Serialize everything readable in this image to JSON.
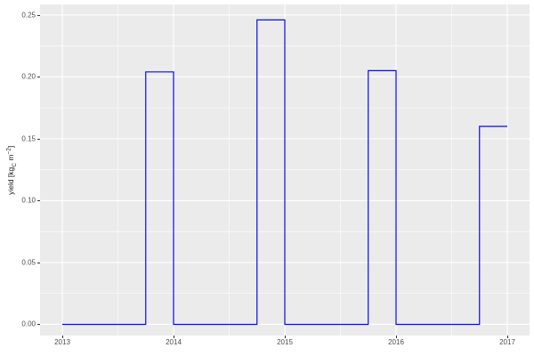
{
  "figure": {
    "background_color": "#FFFFFF",
    "panel_background_color": "#EBEBEB",
    "grid_color": "#FFFFFF",
    "tick_color": "#333333",
    "axis_text_color": "#4D4D4D",
    "axis_title_color": "#1A1A1A"
  },
  "y_axis": {
    "title_parts": {
      "pre": "yield [kg",
      "sub": "C",
      "mid": " m",
      "sup": "−2",
      "post": "]"
    },
    "tick_labels": [
      "0.00",
      "0.05",
      "0.10",
      "0.15",
      "0.20",
      "0.25"
    ]
  },
  "x_axis": {
    "tick_labels": [
      "2013",
      "2014",
      "2015",
      "2016",
      "2017"
    ]
  },
  "chart_data": {
    "type": "line",
    "subtype": "step",
    "title": "",
    "xlabel": "",
    "ylabel": "yield [kg_C m^-2]",
    "grid": true,
    "legend": false,
    "x_range": [
      2012.8,
      2017.2
    ],
    "y_range": [
      -0.009,
      0.2585
    ],
    "x_ticks": [
      2013,
      2014,
      2015,
      2016,
      2017
    ],
    "x_minor_ticks": [
      2013.5,
      2014.5,
      2015.5,
      2016.5
    ],
    "y_ticks": [
      0.0,
      0.05,
      0.1,
      0.15,
      0.2,
      0.25
    ],
    "y_minor_ticks": [
      0.025,
      0.075,
      0.125,
      0.175,
      0.225
    ],
    "series": [
      {
        "name": "yield",
        "color": "#0B0BF0",
        "points": [
          [
            2013.0,
            0.0
          ],
          [
            2013.75,
            0.0
          ],
          [
            2013.75,
            0.204
          ],
          [
            2014.0,
            0.204
          ],
          [
            2014.0,
            0.0
          ],
          [
            2014.75,
            0.0
          ],
          [
            2014.75,
            0.246
          ],
          [
            2015.0,
            0.246
          ],
          [
            2015.0,
            0.0
          ],
          [
            2015.75,
            0.0
          ],
          [
            2015.75,
            0.205
          ],
          [
            2016.0,
            0.205
          ],
          [
            2016.0,
            0.0
          ],
          [
            2016.75,
            0.0
          ],
          [
            2016.75,
            0.16
          ],
          [
            2017.0,
            0.16
          ]
        ]
      }
    ],
    "harvest_pulses": [
      {
        "rise_x": 2013.75,
        "fall_x": 2014.0,
        "value": 0.204
      },
      {
        "rise_x": 2014.75,
        "fall_x": 2015.0,
        "value": 0.246
      },
      {
        "rise_x": 2015.75,
        "fall_x": 2016.0,
        "value": 0.205
      },
      {
        "rise_x": 2016.75,
        "fall_x": 2017.0,
        "value": 0.16
      }
    ]
  }
}
